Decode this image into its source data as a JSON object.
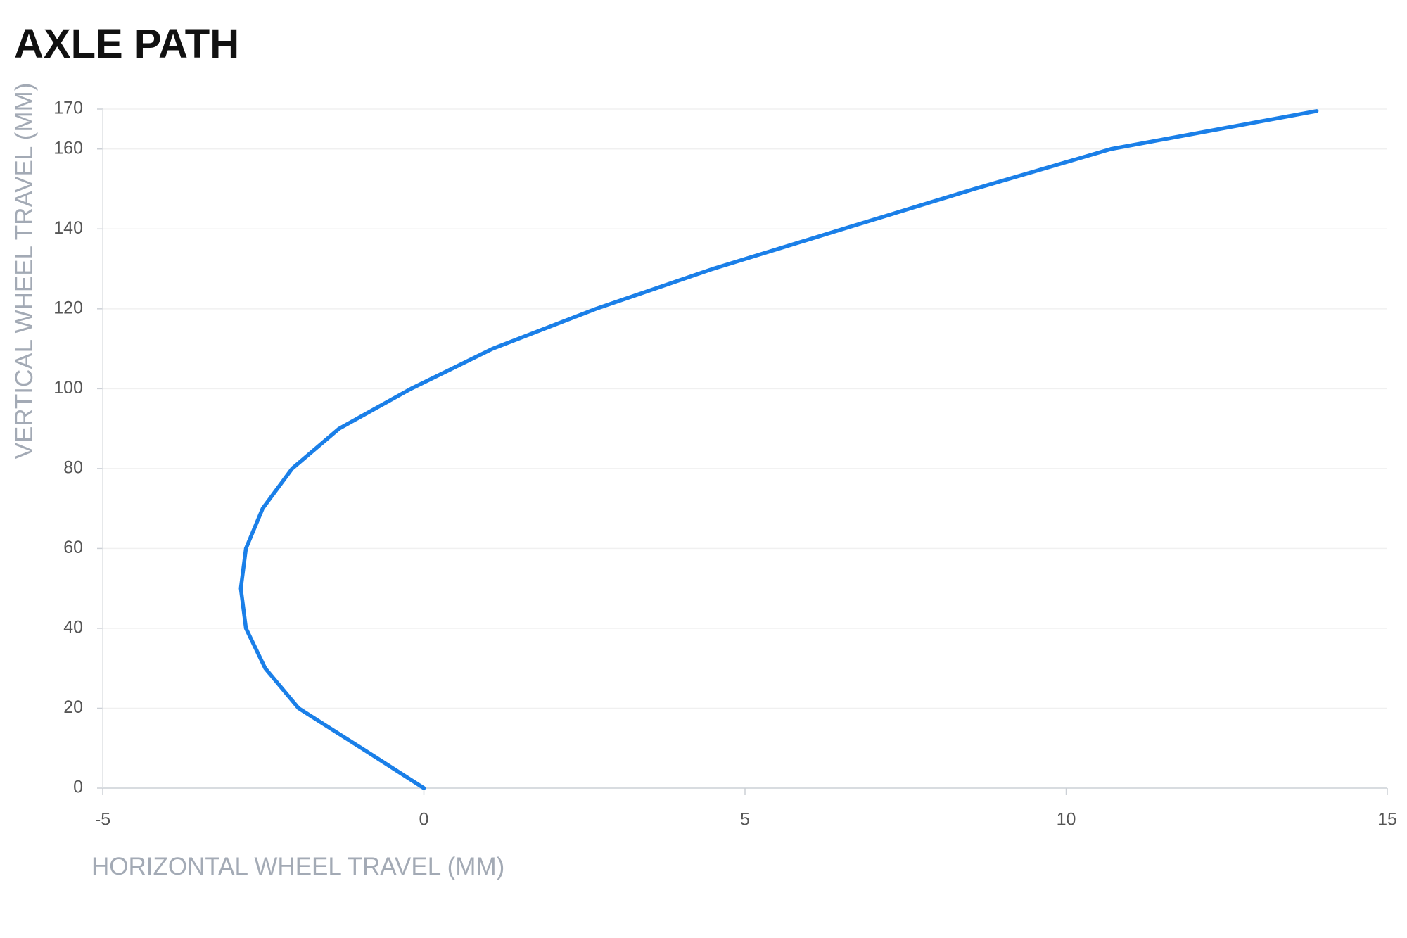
{
  "chart_data": {
    "type": "line",
    "title": "AXLE PATH",
    "x_label": "HORIZONTAL WHEEL TRAVEL (MM)",
    "y_label": "VERTICAL WHEEL TRAVEL (MM)",
    "x": [
      0,
      -0.97,
      -1.95,
      -2.47,
      -2.77,
      -2.85,
      -2.77,
      -2.51,
      -2.05,
      -1.32,
      -0.2,
      1.07,
      2.68,
      4.5,
      6.53,
      8.57,
      10.7,
      13.9
    ],
    "values": [
      0,
      10,
      20,
      30,
      40,
      50,
      60,
      70,
      80,
      90,
      100,
      110,
      120,
      130,
      140,
      150,
      160,
      169.5
    ],
    "color": "#1a7fe8",
    "xlim": [
      -5,
      15
    ],
    "xticks": [
      -5,
      0,
      5,
      10,
      15
    ],
    "ylim": [
      0,
      170
    ],
    "yticks": [
      0,
      20,
      40,
      60,
      80,
      100,
      120,
      140,
      160,
      170
    ],
    "grid": true
  }
}
